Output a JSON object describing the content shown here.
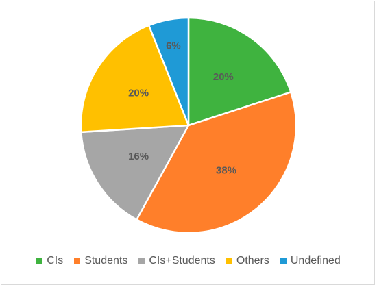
{
  "chart_data": {
    "type": "pie",
    "categories": [
      "CIs",
      "Students",
      "CIs+Students",
      "Others",
      "Undefined"
    ],
    "values": [
      20,
      38,
      16,
      20,
      6
    ],
    "labels": [
      "20%",
      "38%",
      "16%",
      "20%",
      "6%"
    ],
    "colors": [
      "#3fb33f",
      "#ff7f2a",
      "#a6a6a6",
      "#ffc000",
      "#1f9ad6"
    ],
    "start_angle_deg": 0,
    "direction": "clockwise",
    "legend_position": "bottom"
  }
}
